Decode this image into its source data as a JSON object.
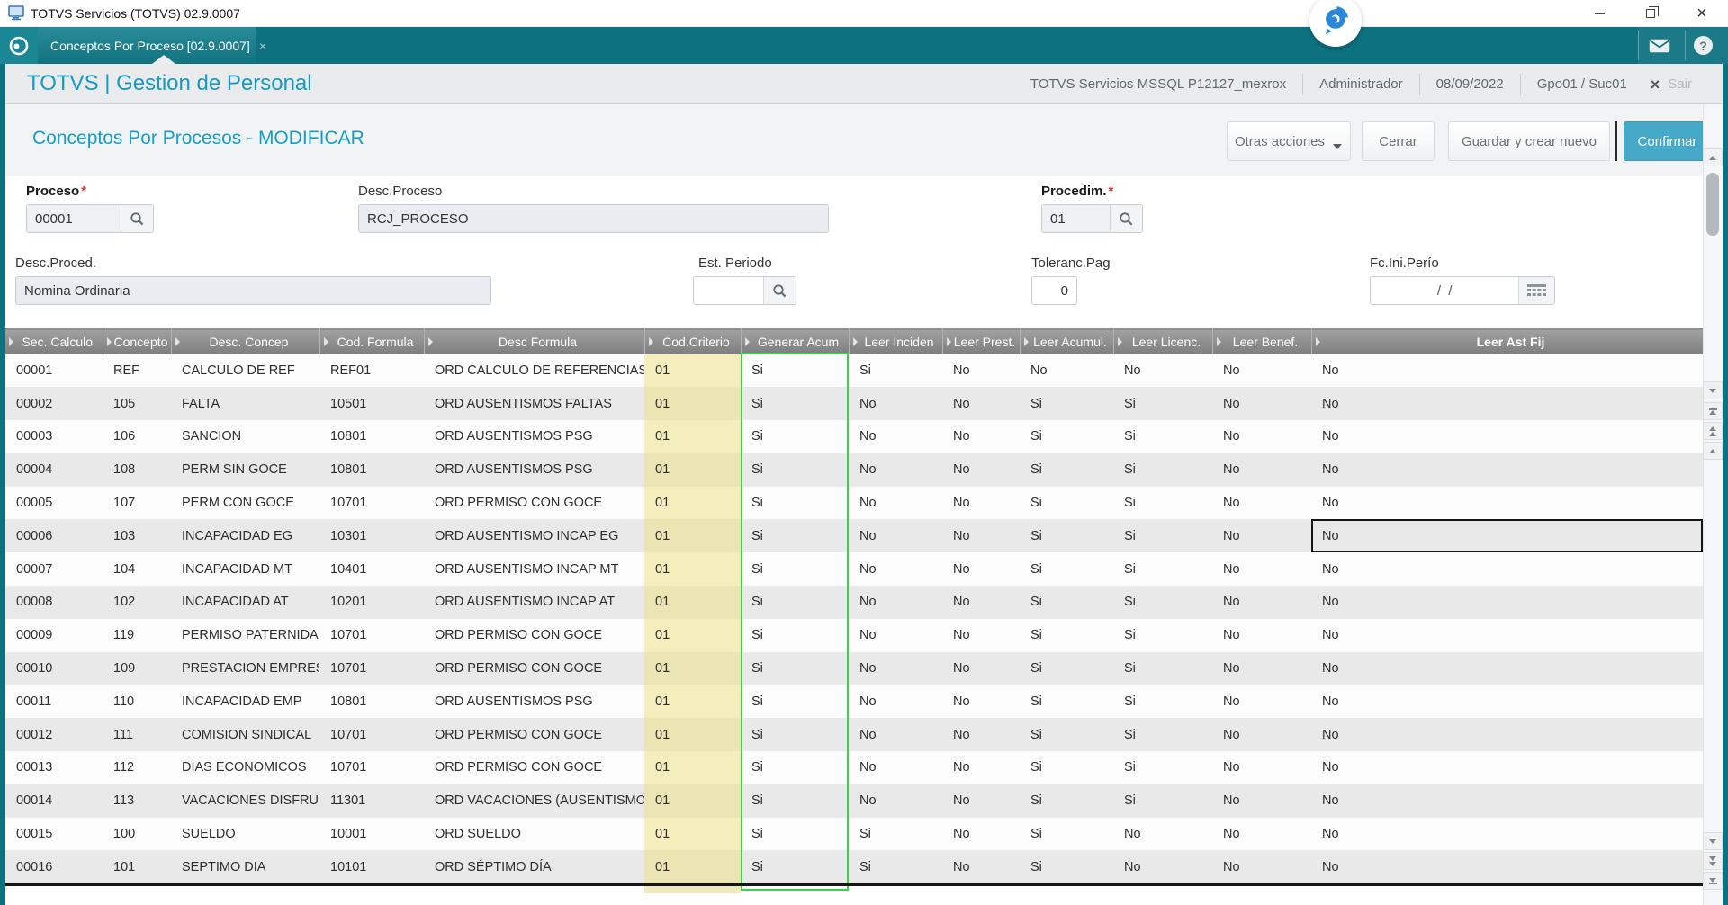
{
  "window": {
    "title": "TOTVS Servicios (TOTVS) 02.9.0007"
  },
  "tab": {
    "label": "Conceptos Por Proceso [02.9.0007]",
    "close": "×"
  },
  "app_header": {
    "brand": "TOTVS | Gestion de Personal",
    "environment": "TOTVS Servicios MSSQL P12127_mexrox",
    "user": "Administrador",
    "date": "08/09/2022",
    "group_branch": "Gpo01 / Suc01",
    "exit_icon": "×",
    "exit_label": "Sair",
    "help_glyph": "?"
  },
  "page": {
    "title": "Conceptos Por Procesos - MODIFICAR",
    "actions": {
      "other": "Otras acciones",
      "close": "Cerrar",
      "save_new": "Guardar y crear nuevo",
      "confirm": "Confirmar"
    }
  },
  "form": {
    "required_marker": "*",
    "proceso": {
      "label": "Proceso",
      "value": "00001"
    },
    "desc_proceso": {
      "label": "Desc.Proceso",
      "value": "RCJ_PROCESO"
    },
    "procedim": {
      "label": "Procedim.",
      "value": "01"
    },
    "desc_proced": {
      "label": "Desc.Proced.",
      "value": "Nomina Ordinaria"
    },
    "est_periodo": {
      "label": "Est. Periodo",
      "value": ""
    },
    "toleranc_pag": {
      "label": "Toleranc.Pag",
      "value": "0"
    },
    "fc_ini_perio": {
      "label": "Fc.Ini.Perío",
      "value": "/  /"
    }
  },
  "grid": {
    "columns": [
      "Sec. Calculo",
      "Concepto",
      "Desc. Concep",
      "Cod. Formula",
      "Desc Formula",
      "Cod.Criterio",
      "Generar Acum",
      "Leer Inciden",
      "Leer Prest.",
      "Leer Acumul.",
      "Leer Licenc.",
      "Leer Benef.",
      "Leer Ast Fij"
    ],
    "rows": [
      [
        "00001",
        "REF",
        "CALCULO DE REF",
        "REF01",
        "ORD CÁLCULO DE REFERENCIAS",
        "01",
        "Si",
        "Si",
        "No",
        "No",
        "No",
        "No",
        "No"
      ],
      [
        "00002",
        "105",
        "FALTA",
        "10501",
        "ORD AUSENTISMOS FALTAS",
        "01",
        "Si",
        "No",
        "No",
        "Si",
        "Si",
        "No",
        "No"
      ],
      [
        "00003",
        "106",
        "SANCION",
        "10801",
        "ORD AUSENTISMOS PSG",
        "01",
        "Si",
        "No",
        "No",
        "Si",
        "Si",
        "No",
        "No"
      ],
      [
        "00004",
        "108",
        "PERM SIN GOCE",
        "10801",
        "ORD AUSENTISMOS PSG",
        "01",
        "Si",
        "No",
        "No",
        "Si",
        "Si",
        "No",
        "No"
      ],
      [
        "00005",
        "107",
        "PERM CON GOCE",
        "10701",
        "ORD PERMISO CON GOCE",
        "01",
        "Si",
        "No",
        "No",
        "Si",
        "Si",
        "No",
        "No"
      ],
      [
        "00006",
        "103",
        "INCAPACIDAD EG",
        "10301",
        "ORD AUSENTISMO INCAP EG",
        "01",
        "Si",
        "No",
        "No",
        "Si",
        "Si",
        "No",
        "No"
      ],
      [
        "00007",
        "104",
        "INCAPACIDAD MT",
        "10401",
        "ORD AUSENTISMO INCAP MT",
        "01",
        "Si",
        "No",
        "No",
        "Si",
        "Si",
        "No",
        "No"
      ],
      [
        "00008",
        "102",
        "INCAPACIDAD AT",
        "10201",
        "ORD AUSENTISMO INCAP AT",
        "01",
        "Si",
        "No",
        "No",
        "Si",
        "Si",
        "No",
        "No"
      ],
      [
        "00009",
        "119",
        "PERMISO PATERNIDAD",
        "10701",
        "ORD PERMISO CON GOCE",
        "01",
        "Si",
        "No",
        "No",
        "Si",
        "Si",
        "No",
        "No"
      ],
      [
        "00010",
        "109",
        "PRESTACION EMPRESA",
        "10701",
        "ORD PERMISO CON GOCE",
        "01",
        "Si",
        "No",
        "No",
        "Si",
        "Si",
        "No",
        "No"
      ],
      [
        "00011",
        "110",
        "INCAPACIDAD EMP",
        "10801",
        "ORD AUSENTISMOS PSG",
        "01",
        "Si",
        "No",
        "No",
        "Si",
        "Si",
        "No",
        "No"
      ],
      [
        "00012",
        "111",
        "COMISION SINDICAL",
        "10701",
        "ORD PERMISO CON GOCE",
        "01",
        "Si",
        "No",
        "No",
        "Si",
        "Si",
        "No",
        "No"
      ],
      [
        "00013",
        "112",
        "DIAS ECONOMICOS",
        "10701",
        "ORD PERMISO CON GOCE",
        "01",
        "Si",
        "No",
        "No",
        "Si",
        "Si",
        "No",
        "No"
      ],
      [
        "00014",
        "113",
        "VACACIONES DISFRUT",
        "11301",
        "ORD VACACIONES (AUSENTISMO)",
        "01",
        "Si",
        "No",
        "No",
        "Si",
        "Si",
        "No",
        "No"
      ],
      [
        "00015",
        "100",
        "SUELDO",
        "10001",
        "ORD SUELDO",
        "01",
        "Si",
        "Si",
        "No",
        "Si",
        "No",
        "No",
        "No"
      ],
      [
        "00016",
        "101",
        "SEPTIMO DIA",
        "10101",
        "ORD SÉPTIMO DÍA",
        "01",
        "Si",
        "Si",
        "No",
        "Si",
        "No",
        "No",
        "No"
      ]
    ],
    "selected_cell": {
      "row_index": 5,
      "col_index": 12
    }
  },
  "colors": {
    "teal_bar": "#0e7180",
    "accent_text": "#1899c3",
    "confirm_button": "#47a9c8",
    "criterio_highlight": "#ede287",
    "acum_highlight_border": "#3ad24a",
    "grid_header": "#8a8a8a",
    "required_marker": "#e03030"
  }
}
